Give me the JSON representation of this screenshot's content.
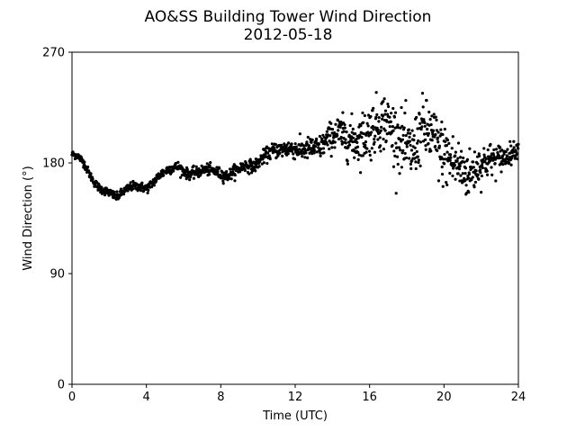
{
  "chart_data": {
    "type": "scatter",
    "title": "AO&SS Building Tower Wind Direction",
    "subtitle": "2012-05-18",
    "xlabel": "Time (UTC)",
    "ylabel": "Wind Direction (°)",
    "xlim": [
      0,
      24
    ],
    "ylim": [
      0,
      270
    ],
    "xticks": [
      0,
      4,
      8,
      12,
      16,
      20,
      24
    ],
    "yticks": [
      0,
      90,
      180,
      270
    ],
    "grid": false,
    "marker_color": "#000000",
    "profile": [
      [
        0.0,
        187
      ],
      [
        0.3,
        186
      ],
      [
        0.6,
        181
      ],
      [
        0.9,
        172
      ],
      [
        1.2,
        164
      ],
      [
        1.5,
        159
      ],
      [
        2.0,
        156
      ],
      [
        2.4,
        152
      ],
      [
        2.8,
        157
      ],
      [
        3.2,
        161
      ],
      [
        3.6,
        161
      ],
      [
        4.0,
        159
      ],
      [
        4.3,
        163
      ],
      [
        4.7,
        170
      ],
      [
        5.2,
        175
      ],
      [
        5.7,
        177
      ],
      [
        6.2,
        171
      ],
      [
        6.7,
        172
      ],
      [
        7.2,
        175
      ],
      [
        7.7,
        173
      ],
      [
        8.3,
        169
      ],
      [
        8.8,
        174
      ],
      [
        9.3,
        178
      ],
      [
        9.8,
        177
      ],
      [
        10.3,
        185
      ],
      [
        10.8,
        190
      ],
      [
        11.3,
        191
      ],
      [
        11.8,
        192
      ],
      [
        12.3,
        190
      ],
      [
        12.8,
        192
      ],
      [
        13.3,
        192
      ],
      [
        13.8,
        200
      ],
      [
        14.3,
        205
      ],
      [
        14.8,
        200
      ],
      [
        15.3,
        198
      ],
      [
        15.8,
        203
      ],
      [
        16.3,
        210
      ],
      [
        16.8,
        215
      ],
      [
        17.3,
        205
      ],
      [
        17.8,
        195
      ],
      [
        18.3,
        188
      ],
      [
        18.8,
        208
      ],
      [
        19.3,
        203
      ],
      [
        19.8,
        190
      ],
      [
        20.3,
        183
      ],
      [
        20.8,
        177
      ],
      [
        21.3,
        170
      ],
      [
        21.8,
        177
      ],
      [
        22.3,
        182
      ],
      [
        22.8,
        183
      ],
      [
        23.3,
        185
      ],
      [
        23.8,
        190
      ],
      [
        24.0,
        192
      ]
    ],
    "scatter_spread": [
      [
        0,
        1.5
      ],
      [
        10,
        2.5
      ],
      [
        13.5,
        5
      ],
      [
        16,
        11
      ],
      [
        20,
        13
      ],
      [
        22,
        8
      ],
      [
        24,
        3
      ]
    ]
  }
}
